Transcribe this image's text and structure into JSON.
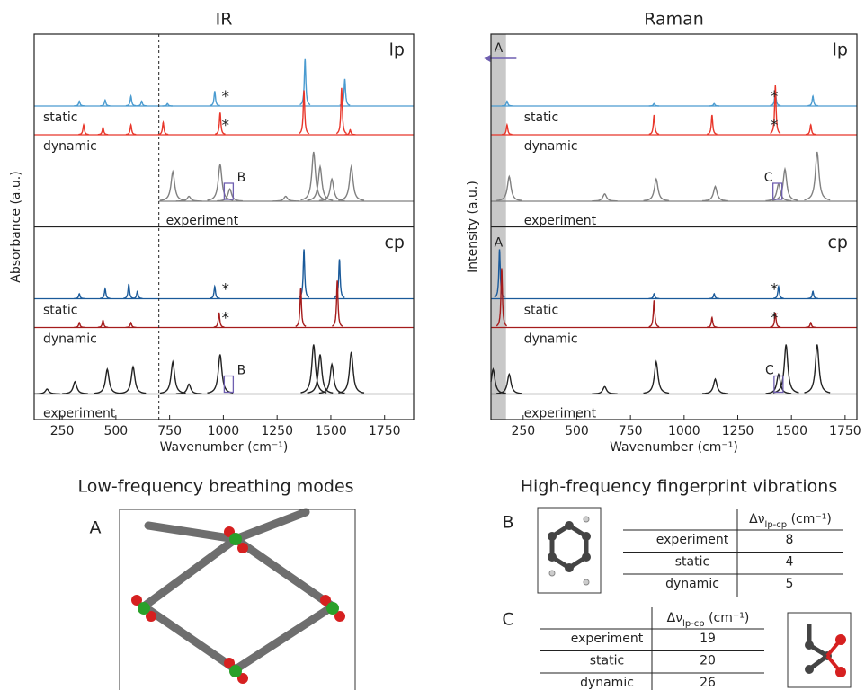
{
  "chart_data": [
    {
      "type": "spectrum",
      "title": "IR",
      "ylabel": "Absorbance (a.u.)",
      "xlabel": "Wavenumber (cm⁻¹)",
      "xlim": [
        120,
        1885
      ],
      "xticks": [
        250,
        500,
        750,
        1000,
        1250,
        1500,
        1750
      ],
      "divider": 700,
      "panels": [
        {
          "label": "lp",
          "series": [
            {
              "name": "static",
              "color": "#4a9bd0",
              "x": [
                330,
                450,
                570,
                620,
                740,
                960,
                1380,
                1565
              ],
              "values": [
                0.1,
                0.12,
                0.2,
                0.1,
                0.05,
                0.3,
                0.95,
                0.55
              ]
            },
            {
              "name": "dynamic",
              "color": "#e8362a",
              "x": [
                350,
                440,
                570,
                720,
                985,
                1375,
                1550,
                1590
              ],
              "values": [
                0.2,
                0.15,
                0.2,
                0.25,
                0.45,
                0.9,
                0.95,
                0.1
              ]
            },
            {
              "name": "experiment",
              "color": "#808080",
              "start_at_divider": true,
              "x": [
                765,
                840,
                985,
                1030,
                1290,
                1420,
                1450,
                1505,
                1595
              ],
              "values": [
                0.6,
                0.1,
                0.75,
                0.25,
                0.1,
                1.0,
                0.7,
                0.45,
                0.7
              ]
            }
          ],
          "annotations": [
            {
              "text": "*",
              "x": 1010,
              "series": 0
            },
            {
              "text": "*",
              "x": 1010,
              "series": 1
            },
            {
              "text": "B",
              "x": 1025,
              "series": 2,
              "box": true
            }
          ]
        },
        {
          "label": "cp",
          "series": [
            {
              "name": "static",
              "color": "#1a5a9a",
              "x": [
                330,
                450,
                560,
                600,
                960,
                1375,
                1540
              ],
              "values": [
                0.1,
                0.2,
                0.3,
                0.15,
                0.25,
                1.0,
                0.8
              ]
            },
            {
              "name": "dynamic",
              "color": "#a51c1c",
              "x": [
                330,
                440,
                570,
                980,
                1360,
                1530
              ],
              "values": [
                0.1,
                0.15,
                0.1,
                0.3,
                0.8,
                0.95
              ]
            },
            {
              "name": "experiment",
              "color": "#222222",
              "x": [
                180,
                310,
                460,
                580,
                765,
                840,
                985,
                1420,
                1450,
                1505,
                1595
              ],
              "values": [
                0.1,
                0.25,
                0.5,
                0.55,
                0.65,
                0.2,
                0.8,
                1.0,
                0.8,
                0.6,
                0.85
              ]
            }
          ],
          "annotations": [
            {
              "text": "*",
              "x": 1010,
              "series": 0
            },
            {
              "text": "*",
              "x": 1010,
              "series": 1
            },
            {
              "text": "B",
              "x": 1025,
              "series": 2,
              "box": true
            }
          ]
        }
      ]
    },
    {
      "type": "spectrum",
      "title": "Raman",
      "ylabel": "Intensity (a.u.)",
      "xlabel": "Wavenumber (cm⁻¹)",
      "xlim": [
        100,
        1805
      ],
      "xticks": [
        250,
        500,
        750,
        1000,
        1250,
        1500,
        1750
      ],
      "band": [
        100,
        170
      ],
      "panels": [
        {
          "label": "lp",
          "series": [
            {
              "name": "static",
              "color": "#4a9bd0",
              "x": [
                175,
                860,
                1140,
                1425,
                1600
              ],
              "values": [
                0.1,
                0.05,
                0.05,
                0.3,
                0.2
              ]
            },
            {
              "name": "dynamic",
              "color": "#e8362a",
              "x": [
                175,
                860,
                1130,
                1425,
                1590
              ],
              "values": [
                0.2,
                0.4,
                0.4,
                1.0,
                0.2
              ]
            },
            {
              "name": "experiment",
              "color": "#808080",
              "x": [
                185,
                630,
                870,
                1145,
                1440,
                1470,
                1620
              ],
              "values": [
                0.5,
                0.15,
                0.45,
                0.3,
                0.35,
                0.65,
                1.0
              ]
            }
          ],
          "annotations": [
            {
              "text": "A",
              "x": 135,
              "arrow": true
            },
            {
              "text": "*",
              "x": 1420,
              "series": 0
            },
            {
              "text": "*",
              "x": 1420,
              "series": 1
            },
            {
              "text": "C",
              "x": 1435,
              "series": 2,
              "box": true
            }
          ]
        },
        {
          "label": "cp",
          "series": [
            {
              "name": "static",
              "color": "#1a5a9a",
              "x": [
                140,
                860,
                1140,
                1440,
                1600
              ],
              "values": [
                1.0,
                0.1,
                0.1,
                0.25,
                0.15
              ]
            },
            {
              "name": "dynamic",
              "color": "#a51c1c",
              "x": [
                150,
                860,
                1130,
                1425,
                1590
              ],
              "values": [
                1.2,
                0.55,
                0.2,
                0.3,
                0.1
              ]
            },
            {
              "name": "experiment",
              "color": "#222222",
              "x": [
                110,
                185,
                630,
                870,
                1145,
                1440,
                1475,
                1620
              ],
              "values": [
                0.5,
                0.4,
                0.15,
                0.65,
                0.3,
                0.4,
                1.0,
                1.0
              ]
            }
          ],
          "annotations": [
            {
              "text": "A",
              "x": 135,
              "series": 0,
              "high": true
            },
            {
              "text": "*",
              "x": 1420,
              "series": 0
            },
            {
              "text": "*",
              "x": 1420,
              "series": 1
            },
            {
              "text": "C",
              "x": 1440,
              "series": 2,
              "box": true
            }
          ]
        }
      ]
    }
  ],
  "lower": {
    "left_title": "Low-frequency breathing modes",
    "left_label": "A",
    "right_title": "High-frequency fingerprint vibrations",
    "tables": [
      {
        "label": "B",
        "header": "Δν",
        "header_sub": "lp-cp",
        "header_unit": "(cm⁻¹)",
        "rows": [
          [
            "experiment",
            8
          ],
          [
            "static",
            4
          ],
          [
            "dynamic",
            5
          ]
        ]
      },
      {
        "label": "C",
        "header": "Δν",
        "header_sub": "lp-cp",
        "header_unit": "(cm⁻¹)",
        "rows": [
          [
            "experiment",
            19
          ],
          [
            "static",
            20
          ],
          [
            "dynamic",
            26
          ]
        ]
      }
    ]
  }
}
